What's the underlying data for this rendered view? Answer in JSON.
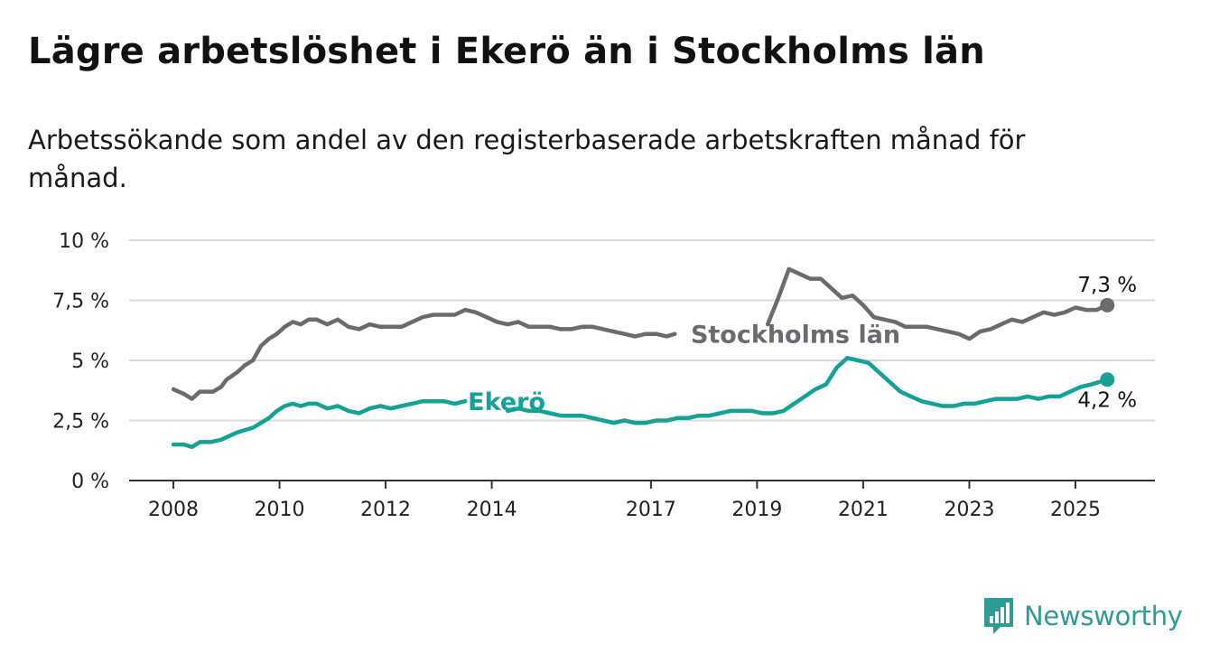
{
  "title": "Lägre arbetslöshet i Ekerö än i Stockholms län",
  "subtitle": "Arbetssökande som andel av den registerbaserade arbetskraften månad för månad.",
  "brand": {
    "name": "Newsworthy",
    "logo_icon": "newsworthy-logo-icon",
    "color": "#2f9c94"
  },
  "chart_data": {
    "type": "line",
    "title": "Lägre arbetslöshet i Ekerö än i Stockholms län",
    "subtitle": "Arbetssökande som andel av den registerbaserade arbetskraften månad för månad.",
    "xlabel": "",
    "ylabel": "",
    "ylim": [
      0,
      10
    ],
    "xlim": [
      2007.6,
      2026.75
    ],
    "y_ticks": [
      0,
      2.5,
      5,
      7.5,
      10
    ],
    "y_tick_labels": [
      "0 %",
      "2,5 %",
      "5 %",
      "7,5 %",
      "10 %"
    ],
    "x_ticks": [
      2008,
      2010,
      2012,
      2014,
      2017,
      2019,
      2021,
      2023,
      2025
    ],
    "x_tick_labels": [
      "2008",
      "2010",
      "2012",
      "2014",
      "2017",
      "2019",
      "2021",
      "2023",
      "2025"
    ],
    "grid": "horizontal",
    "legend": "inline labels",
    "series": [
      {
        "name": "Stockholms län",
        "color": "#6b6a6f",
        "end_label": "7,3 %",
        "x": [
          2008.0,
          2008.2,
          2008.35,
          2008.5,
          2008.6,
          2008.75,
          2008.9,
          2009.0,
          2009.2,
          2009.35,
          2009.5,
          2009.65,
          2009.8,
          2009.95,
          2010.1,
          2010.25,
          2010.4,
          2010.55,
          2010.7,
          2010.9,
          2011.1,
          2011.3,
          2011.5,
          2011.7,
          2011.9,
          2012.1,
          2012.3,
          2012.5,
          2012.7,
          2012.9,
          2013.1,
          2013.3,
          2013.5,
          2013.7,
          2013.9,
          2014.1,
          2014.3,
          2014.5,
          2014.7,
          2014.9,
          2015.1,
          2015.3,
          2015.5,
          2015.7,
          2015.9,
          2016.1,
          2016.3,
          2016.5,
          2016.7,
          2016.9,
          2017.1,
          2017.3,
          2017.45
        ],
        "values": [
          3.8,
          3.6,
          3.4,
          3.7,
          3.7,
          3.7,
          3.9,
          4.2,
          4.5,
          4.8,
          5.0,
          5.6,
          5.9,
          6.1,
          6.4,
          6.6,
          6.5,
          6.7,
          6.7,
          6.5,
          6.7,
          6.4,
          6.3,
          6.5,
          6.4,
          6.4,
          6.4,
          6.6,
          6.8,
          6.9,
          6.9,
          6.9,
          7.1,
          7.0,
          6.8,
          6.6,
          6.5,
          6.6,
          6.4,
          6.4,
          6.4,
          6.3,
          6.3,
          6.4,
          6.4,
          6.3,
          6.2,
          6.1,
          6.0,
          6.1,
          6.1,
          6.0,
          6.1
        ]
      },
      {
        "name": "Stockholms län",
        "color": "#6b6a6f",
        "x": [
          2019.2,
          2019.4,
          2019.6,
          2019.8,
          2020.0,
          2020.2,
          2020.4,
          2020.6,
          2020.8,
          2021.0,
          2021.2,
          2021.4,
          2021.6,
          2021.8,
          2022.0,
          2022.2,
          2022.4,
          2022.6,
          2022.8,
          2023.0,
          2023.2,
          2023.4,
          2023.6,
          2023.8,
          2024.0,
          2024.2,
          2024.4,
          2024.6,
          2024.8,
          2025.0,
          2025.2,
          2025.4,
          2025.6
        ],
        "values": [
          6.5,
          7.6,
          8.8,
          8.6,
          8.4,
          8.4,
          8.0,
          7.6,
          7.7,
          7.3,
          6.8,
          6.7,
          6.6,
          6.4,
          6.4,
          6.4,
          6.3,
          6.2,
          6.1,
          5.9,
          6.2,
          6.3,
          6.5,
          6.7,
          6.6,
          6.8,
          7.0,
          6.9,
          7.0,
          7.2,
          7.1,
          7.1,
          7.3
        ]
      },
      {
        "name": "Ekerö",
        "color": "#14a196",
        "end_label": "4,2 %",
        "x": [
          2008.0,
          2008.2,
          2008.35,
          2008.5,
          2008.7,
          2008.9,
          2009.0,
          2009.2,
          2009.35,
          2009.5,
          2009.65,
          2009.8,
          2009.95,
          2010.1,
          2010.25,
          2010.4,
          2010.55,
          2010.7,
          2010.9,
          2011.1,
          2011.3,
          2011.5,
          2011.7,
          2011.9,
          2012.1,
          2012.3,
          2012.5,
          2012.7,
          2012.9,
          2013.1,
          2013.3,
          2013.5
        ],
        "values": [
          1.5,
          1.5,
          1.4,
          1.6,
          1.6,
          1.7,
          1.8,
          2.0,
          2.1,
          2.2,
          2.4,
          2.6,
          2.9,
          3.1,
          3.2,
          3.1,
          3.2,
          3.2,
          3.0,
          3.1,
          2.9,
          2.8,
          3.0,
          3.1,
          3.0,
          3.1,
          3.2,
          3.3,
          3.3,
          3.3,
          3.2,
          3.3
        ]
      },
      {
        "name": "Ekerö",
        "color": "#14a196",
        "x": [
          2014.3,
          2014.5,
          2014.7,
          2014.9,
          2015.1,
          2015.3,
          2015.5,
          2015.7,
          2015.9,
          2016.1,
          2016.3,
          2016.5,
          2016.7,
          2016.9,
          2017.1,
          2017.3,
          2017.5,
          2017.7,
          2017.9,
          2018.1,
          2018.3,
          2018.5,
          2018.7,
          2018.9,
          2019.1,
          2019.3,
          2019.5,
          2019.7,
          2019.9,
          2020.1,
          2020.3,
          2020.5,
          2020.7,
          2020.9,
          2021.1,
          2021.3,
          2021.5,
          2021.7,
          2021.9,
          2022.1,
          2022.3,
          2022.5,
          2022.7,
          2022.9,
          2023.1,
          2023.3,
          2023.5,
          2023.7,
          2023.9,
          2024.1,
          2024.3,
          2024.5,
          2024.7,
          2024.9,
          2025.1,
          2025.3,
          2025.45,
          2025.6
        ],
        "values": [
          2.9,
          3.0,
          2.9,
          2.9,
          2.8,
          2.7,
          2.7,
          2.7,
          2.6,
          2.5,
          2.4,
          2.5,
          2.4,
          2.4,
          2.5,
          2.5,
          2.6,
          2.6,
          2.7,
          2.7,
          2.8,
          2.9,
          2.9,
          2.9,
          2.8,
          2.8,
          2.9,
          3.2,
          3.5,
          3.8,
          4.0,
          4.7,
          5.1,
          5.0,
          4.9,
          4.5,
          4.1,
          3.7,
          3.5,
          3.3,
          3.2,
          3.1,
          3.1,
          3.2,
          3.2,
          3.3,
          3.4,
          3.4,
          3.4,
          3.5,
          3.4,
          3.5,
          3.5,
          3.7,
          3.9,
          4.0,
          4.1,
          4.2
        ]
      }
    ],
    "inline_labels": [
      {
        "series": "Stockholms län",
        "text": "Stockholms län"
      },
      {
        "series": "Ekerö",
        "text": "Ekerö"
      }
    ]
  }
}
